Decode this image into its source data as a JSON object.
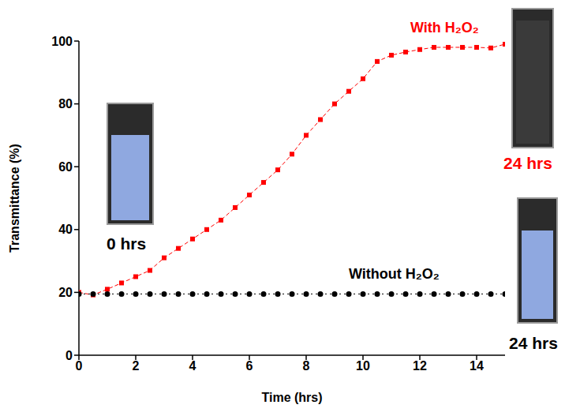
{
  "chart_data": {
    "type": "line",
    "x_label": "Time (hrs)",
    "y_label": "Transmittance (%)",
    "x": [
      0,
      0.5,
      1,
      1.5,
      2,
      2.5,
      3,
      3.5,
      4,
      4.5,
      5,
      5.5,
      6,
      6.5,
      7,
      7.5,
      8,
      8.5,
      9,
      9.5,
      10,
      10.5,
      11,
      11.5,
      12,
      12.5,
      13,
      13.5,
      14,
      14.5,
      15
    ],
    "series": [
      {
        "name": "With H₂O₂",
        "color": "#ff0000",
        "marker": "square",
        "line_style": "dashed",
        "values": [
          20,
          19.2,
          21,
          23,
          25,
          27,
          31,
          34,
          37,
          40,
          43,
          47,
          51,
          55,
          59,
          64,
          70,
          75,
          80,
          84,
          88,
          93.5,
          95.5,
          96.5,
          97.3,
          98,
          98,
          98,
          98,
          97.8,
          99
        ]
      },
      {
        "name": "Without H₂O₂",
        "color": "#000000",
        "marker": "circle",
        "line_style": "dotted",
        "values": [
          19.5,
          19.5,
          19.5,
          19.5,
          19.5,
          19.5,
          19.5,
          19.5,
          19.5,
          19.5,
          19.5,
          19.5,
          19.5,
          19.5,
          19.5,
          19.5,
          19.5,
          19.5,
          19.5,
          19.5,
          19.5,
          19.5,
          19.5,
          19.5,
          19.5,
          19.5,
          19.5,
          19.5,
          19.5,
          19.5,
          19.5
        ]
      }
    ],
    "xlim": [
      0,
      15
    ],
    "xticks": [
      0,
      2,
      4,
      6,
      8,
      10,
      12,
      14
    ],
    "ylim": [
      0,
      100
    ],
    "yticks": [
      0,
      20,
      40,
      60,
      80,
      100
    ],
    "annotations": [
      {
        "text": "0 hrs",
        "color": "#000000"
      },
      {
        "text": "24 hrs",
        "color": "#ff0000"
      },
      {
        "text": "24 hrs",
        "color": "#000000"
      }
    ]
  }
}
